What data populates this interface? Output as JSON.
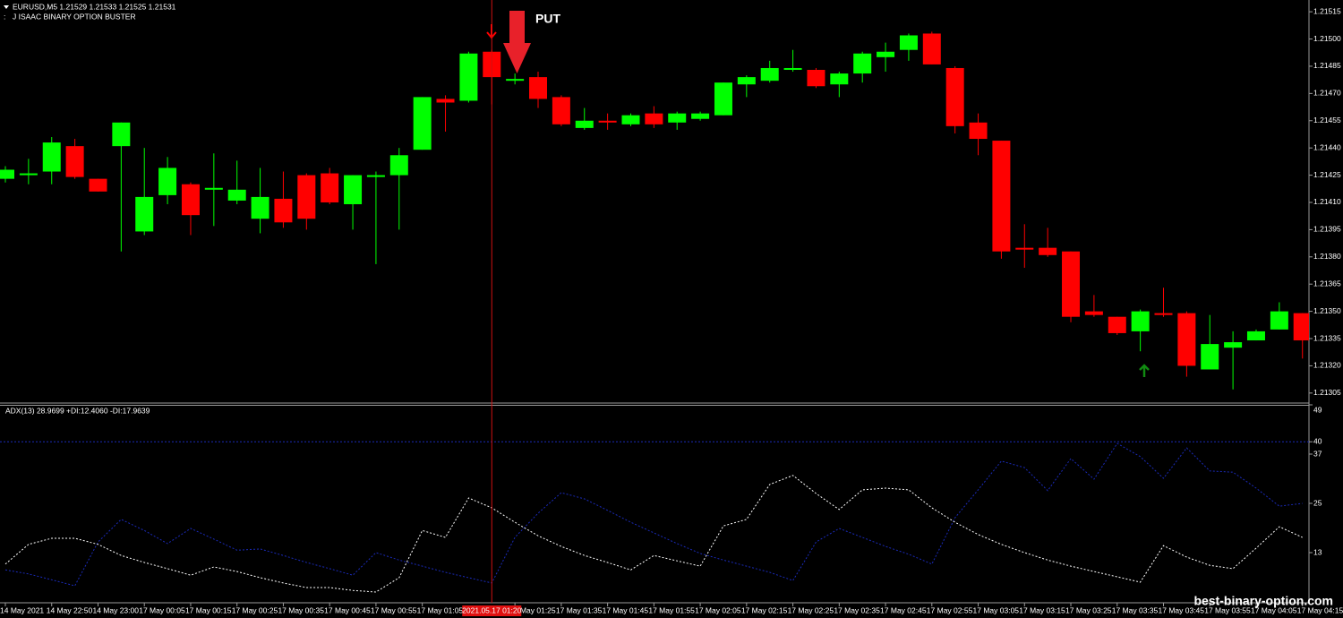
{
  "header": {
    "symbol_line": "EURUSD,M5  1.21529 1.21533 1.21525 1.21531",
    "indicator_name": "J ISAAC BINARY OPTION BUSTER"
  },
  "signal_label": "PUT",
  "crosshair_label": "2021.05.17 01:20",
  "watermark": "best-binary-option.com",
  "chart_data": [
    {
      "type": "candlestick",
      "categories": [
        "14 May 2021",
        null,
        "14 May 22:50",
        null,
        "14 May 23:00",
        null,
        "17 May 00:05",
        null,
        "17 May 00:15",
        null,
        "17 May 00:25",
        null,
        "17 May 00:35",
        null,
        "17 May 00:45",
        null,
        "17 May 00:55",
        null,
        "17 May 01:05",
        null,
        null,
        null,
        "17 May 01:25",
        null,
        "17 May 01:35",
        null,
        "17 May 01:45",
        null,
        "17 May 01:55",
        null,
        "17 May 02:05",
        null,
        "17 May 02:15",
        null,
        "17 May 02:25",
        null,
        "17 May 02:35",
        null,
        "17 May 02:45",
        null,
        "17 May 02:55",
        null,
        "17 May 03:05",
        null,
        "17 May 03:15",
        null,
        "17 May 03:25",
        null,
        "17 May 03:35",
        null,
        "17 May 03:45",
        null,
        "17 May 03:55",
        null,
        "17 May 04:05",
        null,
        "17 May 04:15"
      ],
      "open": [
        1.21423,
        1.21425,
        1.21427,
        1.21441,
        1.21423,
        1.21441,
        1.21394,
        1.21414,
        1.2142,
        1.21417,
        1.21411,
        1.21401,
        1.21412,
        1.21425,
        1.21426,
        1.21409,
        1.21424,
        1.21425,
        1.21439,
        1.21467,
        1.21466,
        1.21493,
        1.21477,
        1.21479,
        1.21468,
        1.21451,
        1.21455,
        1.21453,
        1.21459,
        1.21454,
        1.21456,
        1.21458,
        1.21475,
        1.21477,
        1.21483,
        1.21483,
        1.21475,
        1.21481,
        1.2149,
        1.21494,
        1.21503,
        1.21484,
        1.21454,
        1.21444,
        1.21385,
        1.21385,
        1.21383,
        1.2135,
        1.21347,
        1.21339,
        1.21349,
        1.21349,
        1.21318,
        1.2133,
        1.21334,
        1.2134,
        1.21349
      ],
      "high": [
        1.2143,
        1.21434,
        1.21446,
        1.21445,
        1.21423,
        1.21454,
        1.2144,
        1.21435,
        1.21421,
        1.21437,
        1.21433,
        1.21429,
        1.21427,
        1.21426,
        1.21429,
        1.21425,
        1.21427,
        1.2144,
        1.21468,
        1.21469,
        1.21493,
        1.21494,
        1.21481,
        1.21482,
        1.21469,
        1.21462,
        1.21459,
        1.21459,
        1.21463,
        1.2146,
        1.2146,
        1.21476,
        1.2148,
        1.21488,
        1.21494,
        1.21484,
        1.21482,
        1.21493,
        1.21498,
        1.21503,
        1.21504,
        1.21485,
        1.21459,
        1.21444,
        1.21398,
        1.21396,
        1.21383,
        1.21359,
        1.21347,
        1.21351,
        1.21363,
        1.2135,
        1.21348,
        1.21339,
        1.2134,
        1.21355,
        1.21349
      ],
      "low": [
        1.21421,
        1.2142,
        1.2142,
        1.21423,
        1.21416,
        1.21383,
        1.21392,
        1.21409,
        1.21392,
        1.21397,
        1.21409,
        1.21393,
        1.21396,
        1.21395,
        1.21409,
        1.21395,
        1.21376,
        1.21395,
        1.21439,
        1.21449,
        1.21465,
        1.21464,
        1.21475,
        1.21462,
        1.21452,
        1.2145,
        1.2145,
        1.21452,
        1.21451,
        1.2145,
        1.21455,
        1.21458,
        1.21468,
        1.21476,
        1.21482,
        1.21473,
        1.21468,
        1.21476,
        1.21482,
        1.21488,
        1.21486,
        1.21448,
        1.21436,
        1.21379,
        1.21374,
        1.2138,
        1.21344,
        1.21347,
        1.21337,
        1.21328,
        1.21347,
        1.21314,
        1.21318,
        1.21307,
        1.21334,
        1.2134,
        1.21324
      ],
      "close": [
        1.21428,
        1.21426,
        1.21443,
        1.21424,
        1.21416,
        1.21454,
        1.21413,
        1.21429,
        1.21403,
        1.21418,
        1.21417,
        1.21413,
        1.21399,
        1.21401,
        1.2141,
        1.21425,
        1.21425,
        1.21436,
        1.21468,
        1.21465,
        1.21492,
        1.21479,
        1.21478,
        1.21467,
        1.21453,
        1.21455,
        1.21454,
        1.21458,
        1.21453,
        1.21459,
        1.21459,
        1.21476,
        1.21479,
        1.21484,
        1.21484,
        1.21474,
        1.21481,
        1.21492,
        1.21493,
        1.21502,
        1.21486,
        1.21452,
        1.21445,
        1.21383,
        1.21384,
        1.21381,
        1.21347,
        1.21348,
        1.21338,
        1.2135,
        1.21348,
        1.2132,
        1.21332,
        1.21333,
        1.21339,
        1.2135,
        1.21334
      ],
      "up_color": "#00ff00",
      "down_color": "#ff0000",
      "ylim": [
        1.21299,
        1.2152
      ],
      "yticks": [
        1.21515,
        {
          "value": 1.215,
          "label": "1.21500"
        },
        1.21485,
        {
          "value": 1.2147,
          "label": "1.21470"
        },
        1.21455,
        {
          "value": 1.2144,
          "label": "1.21440"
        },
        1.21425,
        {
          "value": 1.2141,
          "label": "1.21410"
        },
        1.21395,
        {
          "value": 1.2138,
          "label": "1.21380"
        },
        1.21365,
        {
          "value": 1.2135,
          "label": "1.21350"
        },
        1.21335,
        {
          "value": 1.2132,
          "label": "1.21320"
        },
        1.21305
      ]
    },
    {
      "type": "line",
      "title": "ADX(13) 28.9699 +DI:12.4060 -DI:17.9639",
      "series": [
        {
          "color": "#1a2ab8",
          "values": [
            8.8,
            7.8,
            6.4,
            4.9,
            15.6,
            21.1,
            18.4,
            15.2,
            18.9,
            16.3,
            13.6,
            13.9,
            12.3,
            10.6,
            9.1,
            7.5,
            13.0,
            11.2,
            9.7,
            8.2,
            6.9,
            5.6,
            16.7,
            22.6,
            27.6,
            26.1,
            23.3,
            20.4,
            17.8,
            15.2,
            12.8,
            11.2,
            9.7,
            8.2,
            6.2,
            15.6,
            18.9,
            16.7,
            14.5,
            12.6,
            10.2,
            21.5,
            28.3,
            35.3,
            33.7,
            28.1,
            35.9,
            30.9,
            39.6,
            36.4,
            31.1,
            38.5,
            32.9,
            32.6,
            28.7,
            24.3,
            25.0
          ]
        },
        {
          "color": "#ffffff",
          "values": [
            10.2,
            15.0,
            16.5,
            16.5,
            15.0,
            12.3,
            10.6,
            9.1,
            7.5,
            9.5,
            8.4,
            6.9,
            5.6,
            4.5,
            4.5,
            3.8,
            3.4,
            6.9,
            18.4,
            16.7,
            26.3,
            23.9,
            20.4,
            17.1,
            14.5,
            12.3,
            10.6,
            8.8,
            12.3,
            11.0,
            9.7,
            19.5,
            21.1,
            29.6,
            31.8,
            27.4,
            23.5,
            28.3,
            28.7,
            28.3,
            23.9,
            20.4,
            17.4,
            15.0,
            13.0,
            11.2,
            9.7,
            8.4,
            7.1,
            5.8,
            14.7,
            11.9,
            9.9,
            9.1,
            14.1,
            19.3,
            16.7
          ]
        }
      ],
      "level": 40,
      "level_color": "#1a2ab8",
      "ylim": [
        1,
        49
      ],
      "yticks": [
        13,
        25,
        37,
        40,
        49
      ]
    }
  ]
}
